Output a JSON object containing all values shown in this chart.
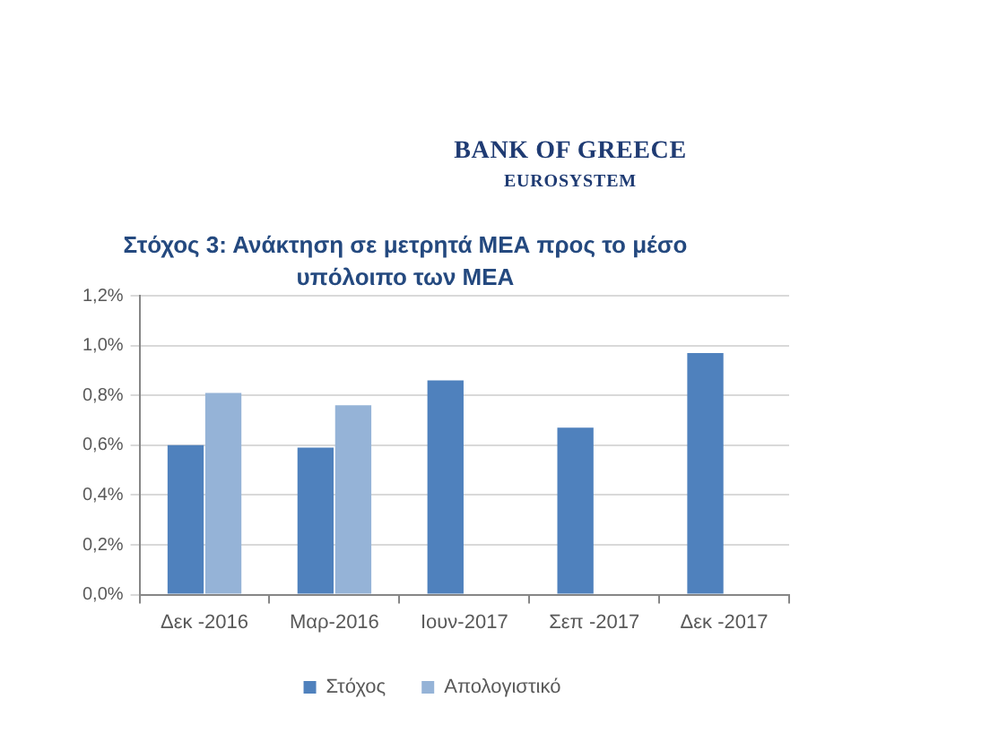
{
  "chart_data": {
    "type": "bar",
    "title": "Στόχος 3: Ανάκτηση σε μετρητά ΜΕΑ προς το μέσο υπόλοιπο των ΜΕΑ",
    "annotations": [
      "BANK OF GREECE",
      "EUROSYSTEM"
    ],
    "categories": [
      "Δεκ -2016",
      "Μαρ-2016",
      "Ιουν-2017",
      "Σεπ -2017",
      "Δεκ -2017"
    ],
    "series": [
      {
        "name": "Στόχος",
        "color": "#4f81bd",
        "values": [
          0.6,
          0.59,
          0.86,
          0.67,
          0.97
        ]
      },
      {
        "name": "Απολογιστικό",
        "color": "#95b3d7",
        "values": [
          0.81,
          0.76,
          null,
          null,
          null
        ]
      }
    ],
    "ylim": [
      0,
      1.2
    ],
    "yticks": [
      {
        "value": 0,
        "label": "0,0%"
      },
      {
        "value": 0.2,
        "label": "0,2%"
      },
      {
        "value": 0.4,
        "label": "0,4%"
      },
      {
        "value": 0.6,
        "label": "0,6%"
      },
      {
        "value": 0.8,
        "label": "0,8%"
      },
      {
        "value": 1.0,
        "label": "1,0%"
      },
      {
        "value": 1.2,
        "label": "1,2%"
      }
    ],
    "grid": "y",
    "legend": "bottom"
  }
}
